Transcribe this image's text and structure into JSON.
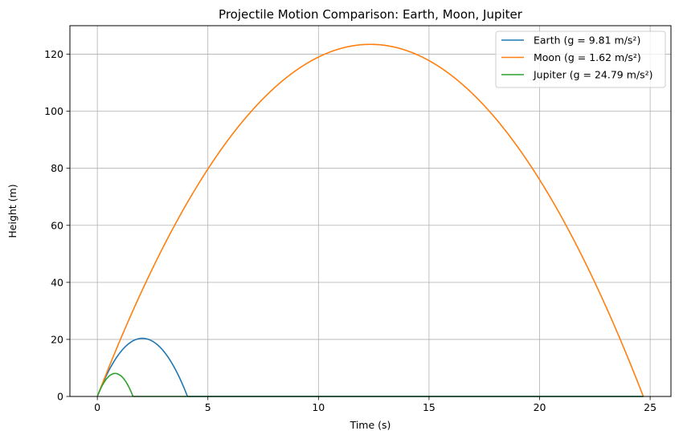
{
  "chart_data": {
    "type": "line",
    "title": "Projectile Motion Comparison: Earth, Moon, Jupiter",
    "xlabel": "Time (s)",
    "ylabel": "Height (m)",
    "xlim": [
      -1.24,
      25.94
    ],
    "ylim": [
      0,
      130
    ],
    "xticks": [
      0,
      5,
      10,
      15,
      20,
      25
    ],
    "yticks": [
      0,
      20,
      40,
      60,
      80,
      100,
      120
    ],
    "grid": true,
    "legend_position": "top-right",
    "initial_velocity": 20,
    "t_max": 24.69,
    "series": [
      {
        "name": "Earth (g = 9.81 m/s²)",
        "g": 9.81,
        "color": "#1f77b4"
      },
      {
        "name": "Moon (g = 1.62 m/s²)",
        "g": 1.62,
        "color": "#ff7f0e"
      },
      {
        "name": "Jupiter (g = 24.79 m/s²)",
        "g": 24.79,
        "color": "#2ca02c"
      }
    ]
  }
}
